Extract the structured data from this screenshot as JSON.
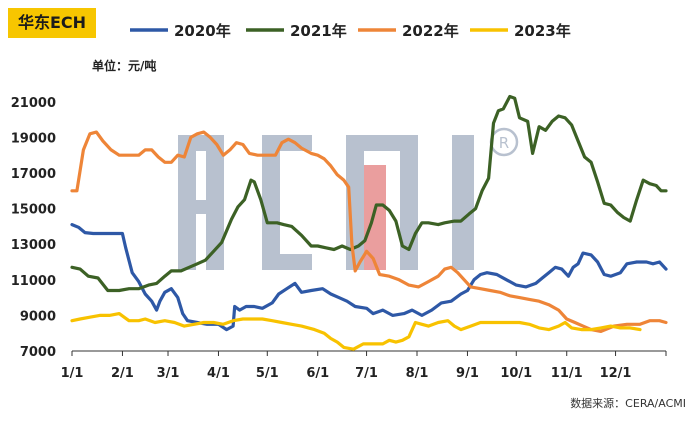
{
  "badge": "华东ECH",
  "unit_label": "单位：元/吨",
  "source": "数据来源：CERA/ACMI",
  "watermark": "ACMI",
  "colors": {
    "s2020": "#2e58a6",
    "s2021": "#3c6125",
    "s2022": "#ee8538",
    "s2023": "#f8c200",
    "badge_bg": "#f7c600",
    "watermark_grey": "#7f90a8",
    "watermark_red": "#d95050"
  },
  "chart_data": {
    "type": "line",
    "title": "华东ECH",
    "ylabel": "单位：元/吨",
    "ylim": [
      7000,
      22000
    ],
    "xlim": [
      1,
      366
    ],
    "yticks": [
      7000,
      9000,
      11000,
      13000,
      15000,
      17000,
      19000,
      21000
    ],
    "xticks": [
      {
        "label": "1/1",
        "day": 1
      },
      {
        "label": "2/1",
        "day": 32
      },
      {
        "label": "3/1",
        "day": 60
      },
      {
        "label": "4/1",
        "day": 91
      },
      {
        "label": "5/1",
        "day": 121
      },
      {
        "label": "6/1",
        "day": 152
      },
      {
        "label": "7/1",
        "day": 182
      },
      {
        "label": "8/1",
        "day": 213
      },
      {
        "label": "9/1",
        "day": 244
      },
      {
        "label": "10/1",
        "day": 274
      },
      {
        "label": "11/1",
        "day": 305
      },
      {
        "label": "12/1",
        "day": 335
      }
    ],
    "grid": false,
    "legend_position": "top",
    "series": [
      {
        "name": "2020年",
        "color": "#2e58a6",
        "points": [
          [
            1,
            14100
          ],
          [
            5,
            13950
          ],
          [
            9,
            13650
          ],
          [
            14,
            13600
          ],
          [
            20,
            13600
          ],
          [
            27,
            13600
          ],
          [
            32,
            13600
          ],
          [
            34,
            12800
          ],
          [
            38,
            11400
          ],
          [
            42,
            10900
          ],
          [
            46,
            10200
          ],
          [
            50,
            9800
          ],
          [
            53,
            9300
          ],
          [
            55,
            9800
          ],
          [
            58,
            10300
          ],
          [
            62,
            10500
          ],
          [
            66,
            10000
          ],
          [
            69,
            9100
          ],
          [
            72,
            8700
          ],
          [
            78,
            8600
          ],
          [
            84,
            8500
          ],
          [
            91,
            8500
          ],
          [
            96,
            8200
          ],
          [
            100,
            8400
          ],
          [
            101,
            9500
          ],
          [
            104,
            9300
          ],
          [
            108,
            9500
          ],
          [
            113,
            9500
          ],
          [
            118,
            9400
          ],
          [
            124,
            9700
          ],
          [
            128,
            10200
          ],
          [
            133,
            10500
          ],
          [
            138,
            10800
          ],
          [
            142,
            10300
          ],
          [
            148,
            10400
          ],
          [
            155,
            10500
          ],
          [
            160,
            10200
          ],
          [
            165,
            10000
          ],
          [
            170,
            9800
          ],
          [
            175,
            9500
          ],
          [
            182,
            9400
          ],
          [
            186,
            9100
          ],
          [
            192,
            9300
          ],
          [
            198,
            9000
          ],
          [
            205,
            9100
          ],
          [
            210,
            9300
          ],
          [
            216,
            9000
          ],
          [
            222,
            9300
          ],
          [
            228,
            9700
          ],
          [
            234,
            9800
          ],
          [
            240,
            10200
          ],
          [
            244,
            10400
          ],
          [
            248,
            11000
          ],
          [
            252,
            11300
          ],
          [
            256,
            11400
          ],
          [
            262,
            11300
          ],
          [
            268,
            11000
          ],
          [
            274,
            10700
          ],
          [
            280,
            10600
          ],
          [
            286,
            10800
          ],
          [
            290,
            11100
          ],
          [
            294,
            11400
          ],
          [
            298,
            11700
          ],
          [
            302,
            11600
          ],
          [
            306,
            11200
          ],
          [
            309,
            11700
          ],
          [
            312,
            11900
          ],
          [
            315,
            12500
          ],
          [
            320,
            12400
          ],
          [
            324,
            12000
          ],
          [
            328,
            11300
          ],
          [
            332,
            11200
          ],
          [
            338,
            11400
          ],
          [
            342,
            11900
          ],
          [
            348,
            12000
          ],
          [
            354,
            12000
          ],
          [
            358,
            11900
          ],
          [
            362,
            12000
          ],
          [
            366,
            11600
          ]
        ]
      },
      {
        "name": "2021年",
        "color": "#3c6125",
        "points": [
          [
            1,
            11700
          ],
          [
            6,
            11600
          ],
          [
            11,
            11200
          ],
          [
            17,
            11100
          ],
          [
            23,
            10400
          ],
          [
            30,
            10400
          ],
          [
            36,
            10500
          ],
          [
            42,
            10500
          ],
          [
            48,
            10700
          ],
          [
            53,
            10800
          ],
          [
            58,
            11200
          ],
          [
            62,
            11500
          ],
          [
            68,
            11500
          ],
          [
            73,
            11700
          ],
          [
            78,
            11900
          ],
          [
            83,
            12100
          ],
          [
            88,
            12600
          ],
          [
            93,
            13100
          ],
          [
            99,
            14400
          ],
          [
            103,
            15100
          ],
          [
            107,
            15500
          ],
          [
            111,
            16600
          ],
          [
            113,
            16500
          ],
          [
            117,
            15500
          ],
          [
            121,
            14200
          ],
          [
            127,
            14200
          ],
          [
            131,
            14100
          ],
          [
            136,
            14000
          ],
          [
            142,
            13500
          ],
          [
            148,
            12900
          ],
          [
            152,
            12900
          ],
          [
            157,
            12800
          ],
          [
            162,
            12700
          ],
          [
            167,
            12900
          ],
          [
            172,
            12700
          ],
          [
            177,
            12900
          ],
          [
            181,
            13200
          ],
          [
            185,
            14200
          ],
          [
            188,
            15200
          ],
          [
            192,
            15200
          ],
          [
            196,
            14900
          ],
          [
            200,
            14300
          ],
          [
            204,
            12900
          ],
          [
            208,
            12700
          ],
          [
            212,
            13600
          ],
          [
            216,
            14200
          ],
          [
            220,
            14200
          ],
          [
            226,
            14100
          ],
          [
            230,
            14200
          ],
          [
            236,
            14300
          ],
          [
            240,
            14300
          ],
          [
            245,
            14700
          ],
          [
            249,
            15000
          ],
          [
            253,
            16000
          ],
          [
            257,
            16700
          ],
          [
            260,
            19800
          ],
          [
            263,
            20500
          ],
          [
            266,
            20600
          ],
          [
            270,
            21300
          ],
          [
            273,
            21200
          ],
          [
            276,
            20100
          ],
          [
            281,
            19900
          ],
          [
            284,
            18100
          ],
          [
            288,
            19600
          ],
          [
            292,
            19400
          ],
          [
            296,
            19900
          ],
          [
            300,
            20200
          ],
          [
            304,
            20100
          ],
          [
            308,
            19700
          ],
          [
            312,
            18800
          ],
          [
            316,
            17900
          ],
          [
            320,
            17600
          ],
          [
            324,
            16500
          ],
          [
            328,
            15300
          ],
          [
            332,
            15200
          ],
          [
            336,
            14800
          ],
          [
            340,
            14500
          ],
          [
            344,
            14300
          ],
          [
            348,
            15500
          ],
          [
            352,
            16600
          ],
          [
            356,
            16400
          ],
          [
            360,
            16300
          ],
          [
            363,
            16000
          ],
          [
            366,
            16000
          ]
        ]
      },
      {
        "name": "2022年",
        "color": "#ee8538",
        "points": [
          [
            1,
            16000
          ],
          [
            4,
            16000
          ],
          [
            8,
            18300
          ],
          [
            12,
            19200
          ],
          [
            16,
            19300
          ],
          [
            20,
            18800
          ],
          [
            25,
            18300
          ],
          [
            30,
            18000
          ],
          [
            36,
            18000
          ],
          [
            42,
            18000
          ],
          [
            46,
            18300
          ],
          [
            50,
            18300
          ],
          [
            54,
            17900
          ],
          [
            58,
            17600
          ],
          [
            62,
            17600
          ],
          [
            66,
            18000
          ],
          [
            70,
            17900
          ],
          [
            74,
            19000
          ],
          [
            78,
            19200
          ],
          [
            82,
            19300
          ],
          [
            86,
            19000
          ],
          [
            90,
            18600
          ],
          [
            94,
            18000
          ],
          [
            98,
            18300
          ],
          [
            102,
            18700
          ],
          [
            106,
            18600
          ],
          [
            110,
            18100
          ],
          [
            115,
            18000
          ],
          [
            120,
            18000
          ],
          [
            126,
            18000
          ],
          [
            130,
            18700
          ],
          [
            134,
            18900
          ],
          [
            138,
            18700
          ],
          [
            142,
            18400
          ],
          [
            148,
            18100
          ],
          [
            152,
            18000
          ],
          [
            156,
            17800
          ],
          [
            160,
            17400
          ],
          [
            164,
            16900
          ],
          [
            168,
            16600
          ],
          [
            171,
            16200
          ],
          [
            173,
            13000
          ],
          [
            175,
            11500
          ],
          [
            178,
            12000
          ],
          [
            182,
            12600
          ],
          [
            186,
            12200
          ],
          [
            190,
            11300
          ],
          [
            196,
            11200
          ],
          [
            202,
            11000
          ],
          [
            208,
            10700
          ],
          [
            214,
            10600
          ],
          [
            220,
            10900
          ],
          [
            226,
            11200
          ],
          [
            230,
            11600
          ],
          [
            234,
            11700
          ],
          [
            238,
            11400
          ],
          [
            242,
            11000
          ],
          [
            246,
            10600
          ],
          [
            252,
            10500
          ],
          [
            258,
            10400
          ],
          [
            264,
            10300
          ],
          [
            270,
            10100
          ],
          [
            276,
            10000
          ],
          [
            282,
            9900
          ],
          [
            288,
            9800
          ],
          [
            294,
            9600
          ],
          [
            300,
            9300
          ],
          [
            305,
            8800
          ],
          [
            310,
            8600
          ],
          [
            315,
            8400
          ],
          [
            320,
            8200
          ],
          [
            326,
            8100
          ],
          [
            334,
            8400
          ],
          [
            342,
            8500
          ],
          [
            350,
            8500
          ],
          [
            356,
            8700
          ],
          [
            362,
            8700
          ],
          [
            366,
            8600
          ]
        ]
      },
      {
        "name": "2023年",
        "color": "#f8c200",
        "points": [
          [
            1,
            8700
          ],
          [
            6,
            8800
          ],
          [
            12,
            8900
          ],
          [
            18,
            9000
          ],
          [
            24,
            9000
          ],
          [
            30,
            9100
          ],
          [
            36,
            8700
          ],
          [
            42,
            8700
          ],
          [
            46,
            8800
          ],
          [
            52,
            8600
          ],
          [
            58,
            8700
          ],
          [
            64,
            8600
          ],
          [
            70,
            8400
          ],
          [
            76,
            8500
          ],
          [
            82,
            8600
          ],
          [
            88,
            8600
          ],
          [
            94,
            8500
          ],
          [
            100,
            8700
          ],
          [
            106,
            8800
          ],
          [
            112,
            8800
          ],
          [
            118,
            8800
          ],
          [
            124,
            8700
          ],
          [
            130,
            8600
          ],
          [
            136,
            8500
          ],
          [
            142,
            8400
          ],
          [
            150,
            8200
          ],
          [
            156,
            8000
          ],
          [
            160,
            7700
          ],
          [
            164,
            7500
          ],
          [
            168,
            7200
          ],
          [
            174,
            7100
          ],
          [
            180,
            7400
          ],
          [
            186,
            7400
          ],
          [
            192,
            7400
          ],
          [
            196,
            7600
          ],
          [
            200,
            7500
          ],
          [
            204,
            7600
          ],
          [
            208,
            7800
          ],
          [
            212,
            8600
          ],
          [
            216,
            8500
          ],
          [
            220,
            8400
          ],
          [
            226,
            8600
          ],
          [
            232,
            8700
          ],
          [
            236,
            8400
          ],
          [
            240,
            8200
          ],
          [
            246,
            8400
          ],
          [
            252,
            8600
          ],
          [
            258,
            8600
          ],
          [
            264,
            8600
          ],
          [
            270,
            8600
          ],
          [
            276,
            8600
          ],
          [
            282,
            8500
          ],
          [
            288,
            8300
          ],
          [
            294,
            8200
          ],
          [
            300,
            8400
          ],
          [
            304,
            8600
          ],
          [
            308,
            8300
          ],
          [
            314,
            8200
          ],
          [
            320,
            8200
          ],
          [
            326,
            8300
          ],
          [
            332,
            8400
          ],
          [
            338,
            8300
          ],
          [
            344,
            8300
          ],
          [
            350,
            8200
          ]
        ]
      }
    ]
  }
}
